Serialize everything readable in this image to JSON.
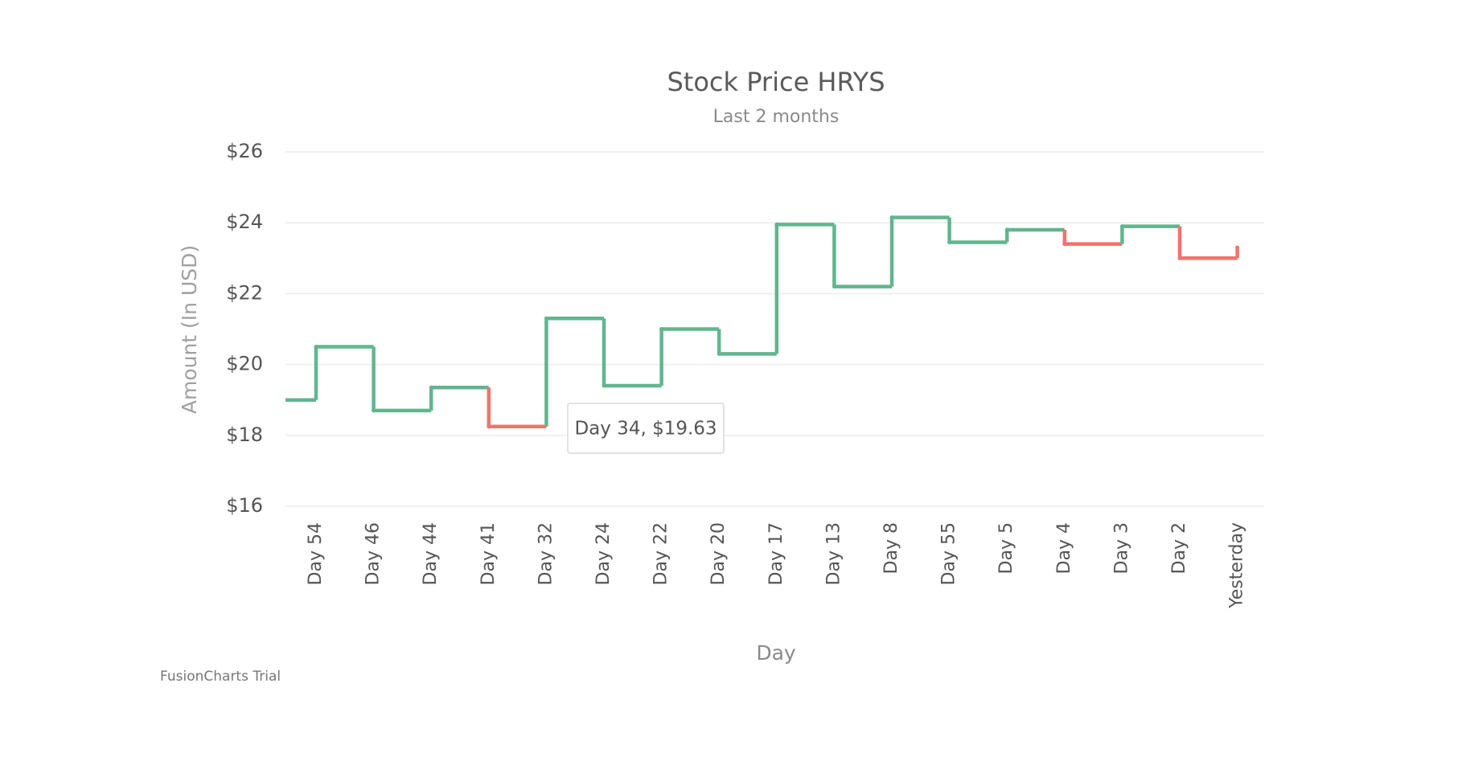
{
  "chart_data": {
    "type": "step-line",
    "title": "Stock Price HRYS",
    "subtitle": "Last 2 months",
    "x_label": "Day",
    "y_label": "Amount (In USD)",
    "categories": [
      null,
      "Day 54",
      "Day 46",
      "Day 44",
      "Day 41",
      "Day 32",
      "Day 24",
      "Day 22",
      "Day 20",
      "Day 17",
      "Day 13",
      "Day 8",
      "Day 55",
      "Day 5",
      "Day 4",
      "Day 3",
      "Day 2",
      "Yesterday"
    ],
    "series": [
      {
        "name": "HRYS",
        "values": [
          19.0,
          20.5,
          18.7,
          19.35,
          18.25,
          21.3,
          19.4,
          21.0,
          20.3,
          23.95,
          22.2,
          24.15,
          23.45,
          23.8,
          23.4,
          23.9,
          23.0,
          23.3
        ],
        "colors": [
          "#62b58f",
          "#62b58f",
          "#62b58f",
          "#62b58f",
          "#f2726f",
          "#62b58f",
          "#62b58f",
          "#62b58f",
          "#62b58f",
          "#62b58f",
          "#62b58f",
          "#62b58f",
          "#62b58f",
          "#62b58f",
          "#f2726f",
          "#62b58f",
          "#f2726f",
          "#f2726f"
        ]
      }
    ],
    "ylim": [
      16,
      26
    ],
    "yticks": [
      {
        "value": 16,
        "label": "$16"
      },
      {
        "value": 18,
        "label": "$18"
      },
      {
        "value": 20,
        "label": "$20"
      },
      {
        "value": 22,
        "label": "$22"
      },
      {
        "value": 24,
        "label": "$24"
      },
      {
        "value": 26,
        "label": "$26"
      }
    ],
    "grid": true,
    "tooltip": "Day 34, $19.63",
    "watermark": "FusionCharts Trial"
  }
}
